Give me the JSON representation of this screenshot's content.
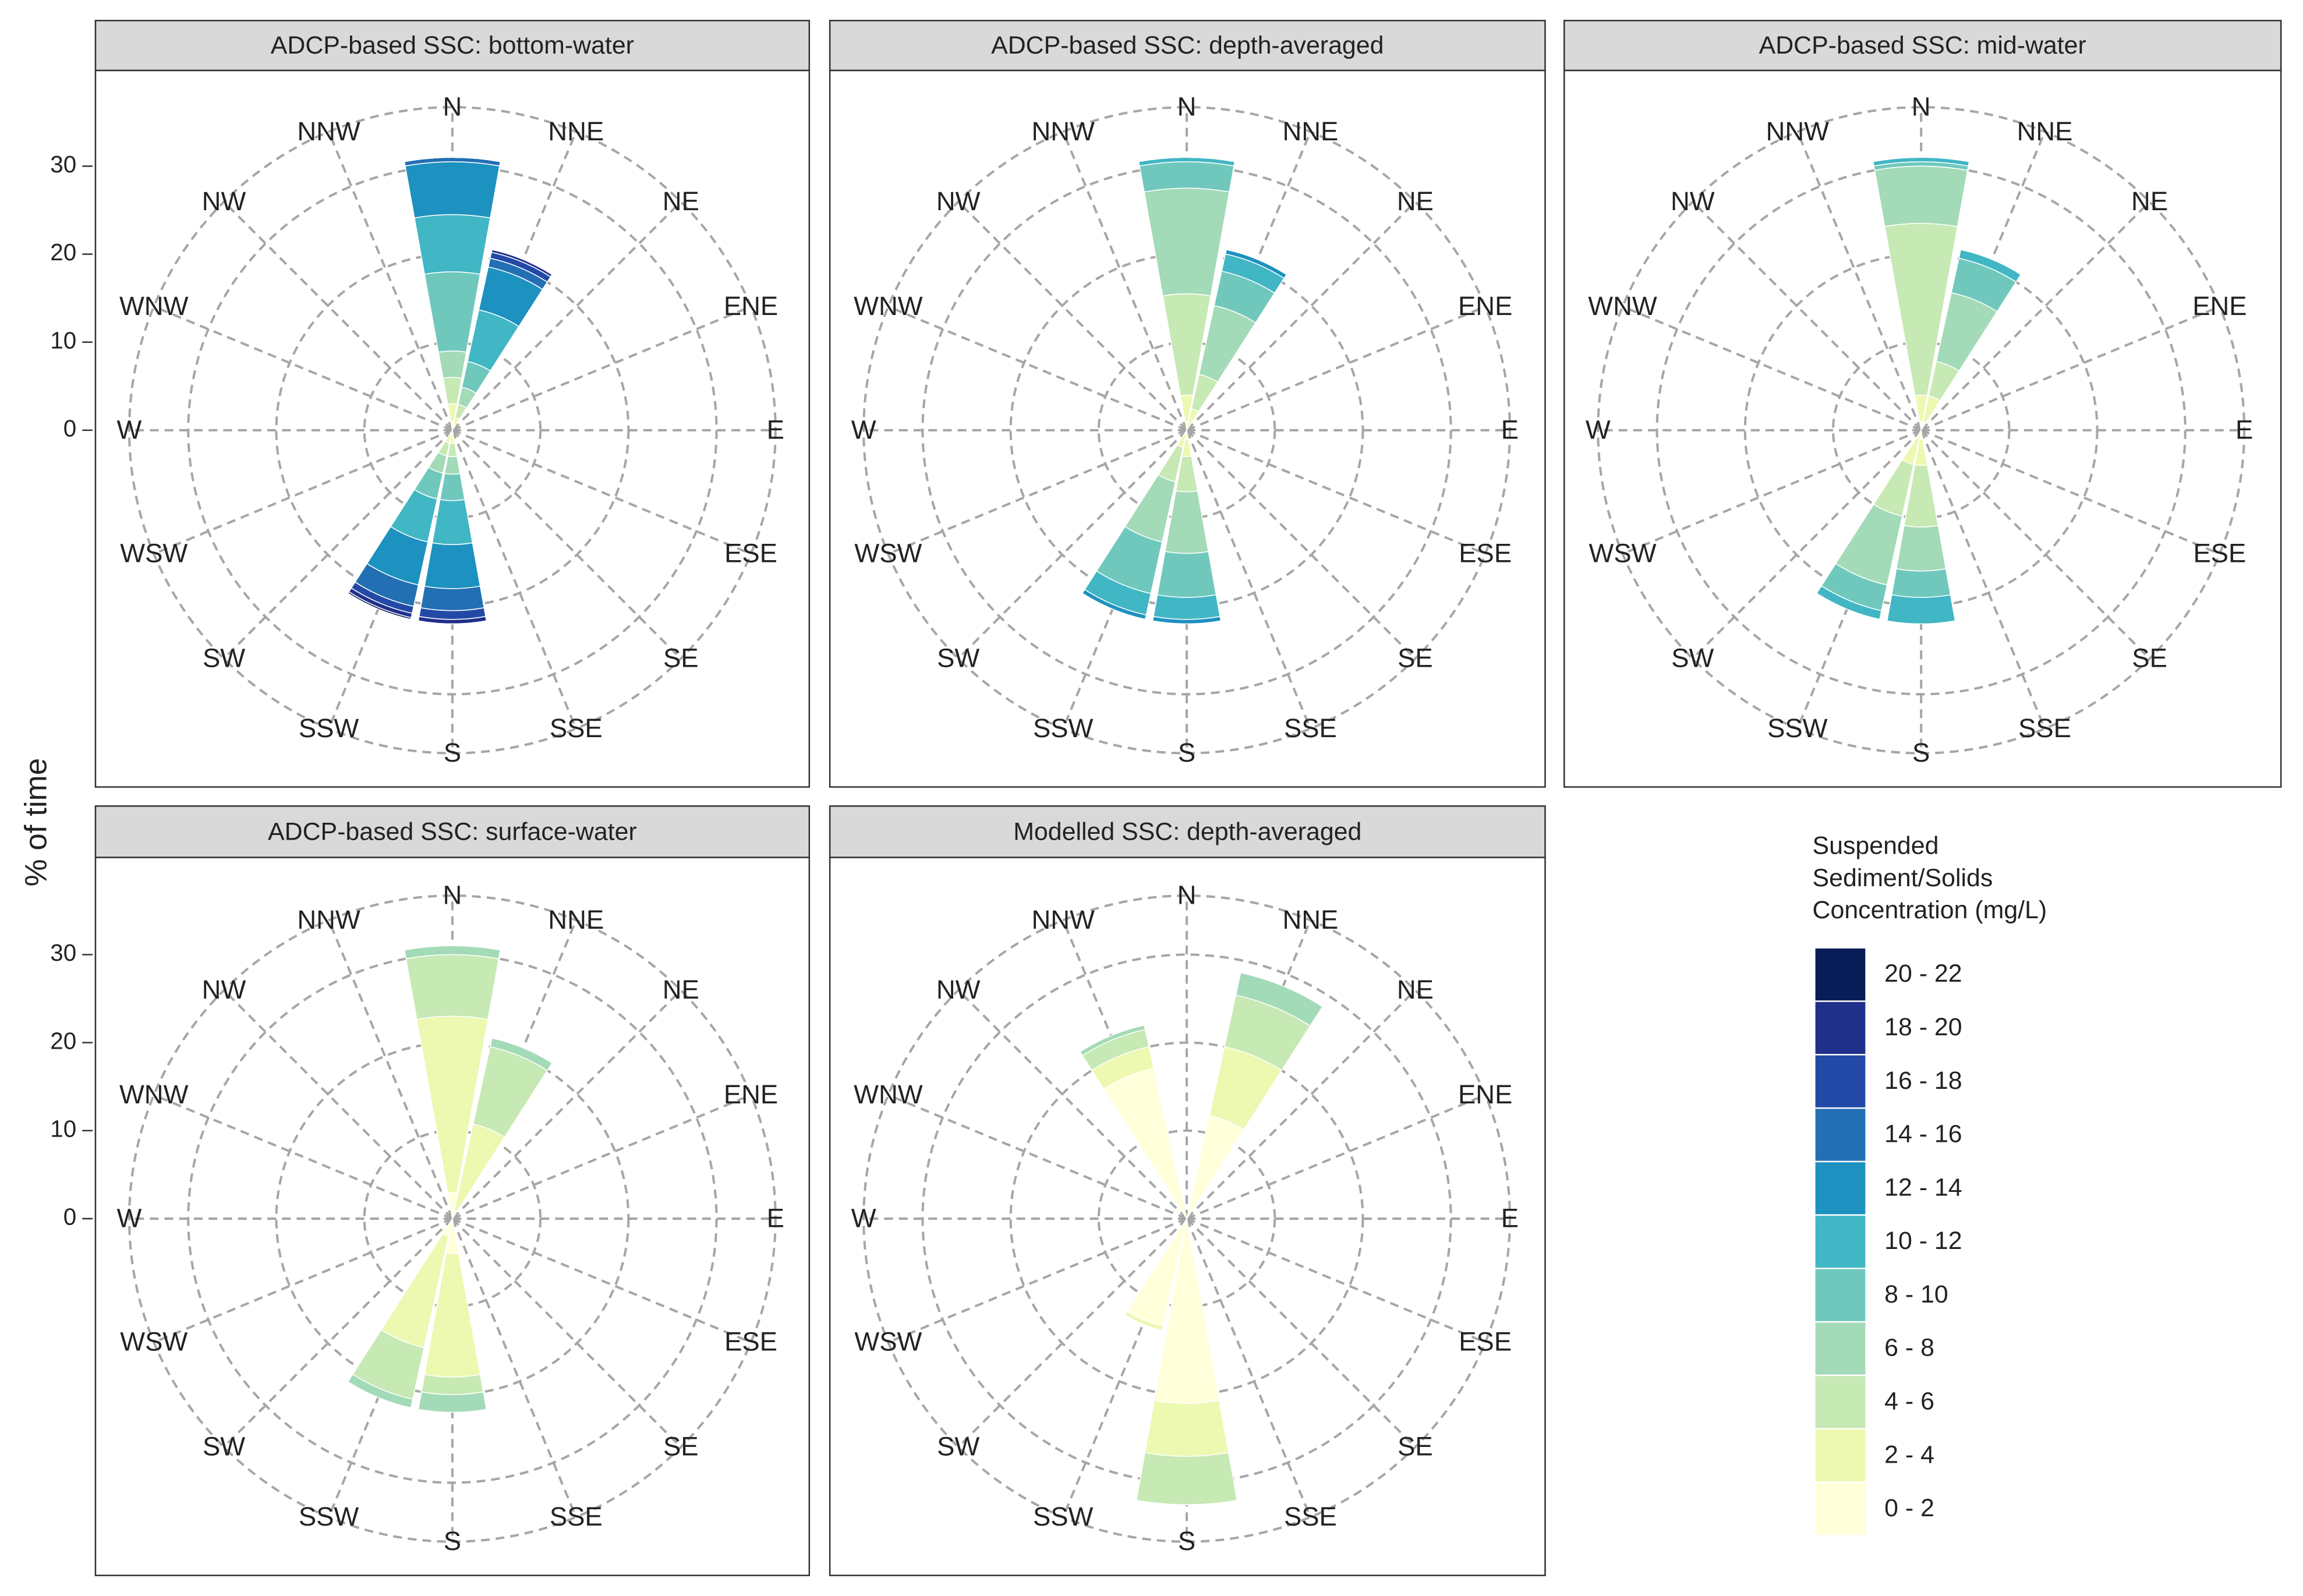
{
  "ylabel": "% of time",
  "legend": {
    "title": [
      "Suspended",
      "Sediment/Solids",
      "Concentration (mg/L)"
    ],
    "entries": [
      {
        "name": "20 - 22",
        "color": "#081d58"
      },
      {
        "name": "18 - 20",
        "color": "#1f2f8a"
      },
      {
        "name": "16 - 18",
        "color": "#2349a6"
      },
      {
        "name": "14 - 16",
        "color": "#226fb4"
      },
      {
        "name": "12 - 14",
        "color": "#1d91c0"
      },
      {
        "name": "10 - 12",
        "color": "#41b6c4"
      },
      {
        "name": "8 - 10",
        "color": "#70c8bd"
      },
      {
        "name": "6 - 8",
        "color": "#a3dab7"
      },
      {
        "name": "4 - 6",
        "color": "#c7e9b4"
      },
      {
        "name": "2 - 4",
        "color": "#edf8b1"
      },
      {
        "name": "0 - 2",
        "color": "#ffffd9"
      }
    ]
  },
  "chart_data": [
    {
      "type": "polar_bar",
      "title": "ADCP-based SSC: bottom-water",
      "categories": [
        "N",
        "NNE",
        "NE",
        "ENE",
        "E",
        "ESE",
        "SE",
        "SSE",
        "S",
        "SSW",
        "SW",
        "WSW",
        "W",
        "WNW",
        "NW",
        "NNW"
      ],
      "ylim": [
        0,
        36.7
      ],
      "yticks": [
        0,
        10,
        20,
        30
      ],
      "series": [
        {
          "name": "0 - 2",
          "color": "#ffffd9",
          "values": [
            1,
            0.5,
            0,
            0,
            0,
            0,
            0,
            0,
            0.5,
            0.5,
            0,
            0,
            0,
            0,
            0,
            0
          ]
        },
        {
          "name": "2 - 4",
          "color": "#edf8b1",
          "values": [
            2,
            1,
            0,
            0,
            0,
            0,
            0,
            0,
            1,
            1,
            0,
            0,
            0,
            0,
            0,
            0
          ]
        },
        {
          "name": "4 - 6",
          "color": "#c7e9b4",
          "values": [
            3,
            1.5,
            0,
            0,
            0,
            0,
            0,
            0,
            1.5,
            1.5,
            0,
            0,
            0,
            0,
            0,
            0
          ]
        },
        {
          "name": "6 - 8",
          "color": "#a3dab7",
          "values": [
            3,
            2,
            0,
            0,
            0,
            0,
            0,
            0,
            2,
            2,
            0,
            0,
            0,
            0,
            0,
            0
          ]
        },
        {
          "name": "8 - 10",
          "color": "#70c8bd",
          "values": [
            9,
            3,
            0,
            0,
            0,
            0,
            0,
            0,
            3,
            3,
            0,
            0,
            0,
            0,
            0,
            0
          ]
        },
        {
          "name": "10 - 12",
          "color": "#41b6c4",
          "values": [
            6.5,
            6,
            0,
            0,
            0,
            0,
            0,
            0,
            5,
            5,
            0,
            0,
            0,
            0,
            0,
            0
          ]
        },
        {
          "name": "12 - 14",
          "color": "#1d91c0",
          "values": [
            6,
            5,
            0,
            0,
            0,
            0,
            0,
            0,
            5,
            5,
            0,
            0,
            0,
            0,
            0,
            0
          ]
        },
        {
          "name": "14 - 16",
          "color": "#226fb4",
          "values": [
            0.5,
            1,
            0,
            0,
            0,
            0,
            0,
            0,
            2.5,
            2.5,
            0,
            0,
            0,
            0,
            0,
            0
          ]
        },
        {
          "name": "16 - 18",
          "color": "#2349a6",
          "values": [
            0,
            0.7,
            0,
            0,
            0,
            0,
            0,
            0,
            1,
            0.8,
            0,
            0,
            0,
            0,
            0,
            0
          ]
        },
        {
          "name": "18 - 20",
          "color": "#1f2f8a",
          "values": [
            0,
            0.3,
            0,
            0,
            0,
            0,
            0,
            0,
            0.5,
            0.5,
            0,
            0,
            0,
            0,
            0,
            0
          ]
        },
        {
          "name": "20 - 22",
          "color": "#081d58",
          "values": [
            0,
            0,
            0,
            0,
            0,
            0,
            0,
            0,
            0,
            0.2,
            0,
            0,
            0,
            0,
            0,
            0
          ]
        }
      ]
    },
    {
      "type": "polar_bar",
      "title": "ADCP-based SSC: depth-averaged",
      "categories": [
        "N",
        "NNE",
        "NE",
        "ENE",
        "E",
        "ESE",
        "SE",
        "SSE",
        "S",
        "SSW",
        "SW",
        "WSW",
        "W",
        "WNW",
        "NW",
        "NNW"
      ],
      "ylim": [
        0,
        36.7
      ],
      "yticks": [
        0,
        10,
        20,
        30
      ],
      "series": [
        {
          "name": "0 - 2",
          "color": "#ffffd9",
          "values": [
            1,
            0.5,
            0,
            0,
            0,
            0,
            0,
            0,
            1,
            0.5,
            0,
            0,
            0,
            0,
            0,
            0
          ]
        },
        {
          "name": "2 - 4",
          "color": "#edf8b1",
          "values": [
            3,
            2,
            0,
            0,
            0,
            0,
            0,
            0,
            2,
            1.5,
            0,
            0,
            0,
            0,
            0,
            0
          ]
        },
        {
          "name": "4 - 6",
          "color": "#c7e9b4",
          "values": [
            11.5,
            4,
            0,
            0,
            0,
            0,
            0,
            0,
            4,
            4,
            0,
            0,
            0,
            0,
            0,
            0
          ]
        },
        {
          "name": "6 - 8",
          "color": "#a3dab7",
          "values": [
            12,
            8,
            0,
            0,
            0,
            0,
            0,
            0,
            7,
            7,
            0,
            0,
            0,
            0,
            0,
            0
          ]
        },
        {
          "name": "8 - 10",
          "color": "#70c8bd",
          "values": [
            3,
            4,
            0,
            0,
            0,
            0,
            0,
            0,
            5,
            6,
            0,
            0,
            0,
            0,
            0,
            0
          ]
        },
        {
          "name": "10 - 12",
          "color": "#41b6c4",
          "values": [
            0.5,
            2,
            0,
            0,
            0,
            0,
            0,
            0,
            2.5,
            2.5,
            0,
            0,
            0,
            0,
            0,
            0
          ]
        },
        {
          "name": "12 - 14",
          "color": "#1d91c0",
          "values": [
            0,
            0.5,
            0,
            0,
            0,
            0,
            0,
            0,
            0.5,
            0.5,
            0,
            0,
            0,
            0,
            0,
            0
          ]
        }
      ]
    },
    {
      "type": "polar_bar",
      "title": "ADCP-based SSC: mid-water",
      "categories": [
        "N",
        "NNE",
        "NE",
        "ENE",
        "E",
        "ESE",
        "SE",
        "SSE",
        "S",
        "SSW",
        "SW",
        "WSW",
        "W",
        "WNW",
        "NW",
        "NNW"
      ],
      "ylim": [
        0,
        36.7
      ],
      "yticks": [
        0,
        10,
        20,
        30
      ],
      "series": [
        {
          "name": "0 - 2",
          "color": "#ffffd9",
          "values": [
            1,
            1,
            0,
            0,
            0,
            0,
            0,
            0,
            1,
            1,
            0,
            0,
            0,
            0,
            0,
            0
          ]
        },
        {
          "name": "2 - 4",
          "color": "#edf8b1",
          "values": [
            3,
            3,
            0,
            0,
            0,
            0,
            0,
            0,
            3,
            3,
            0,
            0,
            0,
            0,
            0,
            0
          ]
        },
        {
          "name": "4 - 6",
          "color": "#c7e9b4",
          "values": [
            19.5,
            4,
            0,
            0,
            0,
            0,
            0,
            0,
            7,
            6,
            0,
            0,
            0,
            0,
            0,
            0
          ]
        },
        {
          "name": "6 - 8",
          "color": "#a3dab7",
          "values": [
            6.5,
            8,
            0,
            0,
            0,
            0,
            0,
            0,
            5,
            8,
            0,
            0,
            0,
            0,
            0,
            0
          ]
        },
        {
          "name": "8 - 10",
          "color": "#70c8bd",
          "values": [
            0.5,
            4,
            0,
            0,
            0,
            0,
            0,
            0,
            3,
            3,
            0,
            0,
            0,
            0,
            0,
            0
          ]
        },
        {
          "name": "10 - 12",
          "color": "#41b6c4",
          "values": [
            0.5,
            1,
            0,
            0,
            0,
            0,
            0,
            0,
            3,
            1,
            0,
            0,
            0,
            0,
            0,
            0
          ]
        }
      ]
    },
    {
      "type": "polar_bar",
      "title": "ADCP-based SSC: surface-water",
      "categories": [
        "N",
        "NNE",
        "NE",
        "ENE",
        "E",
        "ESE",
        "SE",
        "SSE",
        "S",
        "SSW",
        "SW",
        "WSW",
        "W",
        "WNW",
        "NW",
        "NNW"
      ],
      "ylim": [
        0,
        36.7
      ],
      "yticks": [
        0,
        10,
        20,
        30
      ],
      "series": [
        {
          "name": "0 - 2",
          "color": "#ffffd9",
          "values": [
            3,
            1,
            0,
            0,
            0,
            0,
            0,
            0,
            4,
            2,
            0,
            0,
            0,
            0,
            0,
            0
          ]
        },
        {
          "name": "2 - 4",
          "color": "#edf8b1",
          "values": [
            20,
            10,
            0,
            0,
            0,
            0,
            0,
            0,
            14,
            13,
            0,
            0,
            0,
            0,
            0,
            0
          ]
        },
        {
          "name": "4 - 6",
          "color": "#c7e9b4",
          "values": [
            7,
            9,
            0,
            0,
            0,
            0,
            0,
            0,
            2,
            6,
            0,
            0,
            0,
            0,
            0,
            0
          ]
        },
        {
          "name": "6 - 8",
          "color": "#a3dab7",
          "values": [
            1,
            1,
            0,
            0,
            0,
            0,
            0,
            0,
            2,
            1,
            0,
            0,
            0,
            0,
            0,
            0
          ]
        }
      ]
    },
    {
      "type": "polar_bar",
      "title": "Modelled SSC: depth-averaged",
      "categories": [
        "N",
        "NNE",
        "NE",
        "ENE",
        "E",
        "ESE",
        "SE",
        "SSE",
        "S",
        "SSW",
        "SW",
        "WSW",
        "W",
        "WNW",
        "NW",
        "NNW"
      ],
      "ylim": [
        0,
        36.7
      ],
      "yticks": [
        0,
        10,
        20,
        30
      ],
      "series": [
        {
          "name": "0 - 2",
          "color": "#ffffd9",
          "values": [
            0,
            12,
            0,
            0,
            0,
            0,
            0,
            0,
            21,
            12.5,
            0,
            0,
            0,
            0,
            0,
            17.5
          ]
        },
        {
          "name": "2 - 4",
          "color": "#edf8b1",
          "values": [
            0,
            8,
            0,
            0,
            0,
            0,
            0,
            0,
            6,
            0.5,
            0,
            0,
            0,
            0,
            0,
            2.5
          ]
        },
        {
          "name": "4 - 6",
          "color": "#c7e9b4",
          "values": [
            0,
            6,
            0,
            0,
            0,
            0,
            0,
            0,
            5.5,
            0,
            0,
            0,
            0,
            0,
            0,
            2
          ]
        },
        {
          "name": "6 - 8",
          "color": "#a3dab7",
          "values": [
            0,
            2.6,
            0,
            0,
            0,
            0,
            0,
            0,
            0,
            0,
            0,
            0,
            0,
            0,
            0,
            0.5
          ]
        }
      ]
    }
  ]
}
